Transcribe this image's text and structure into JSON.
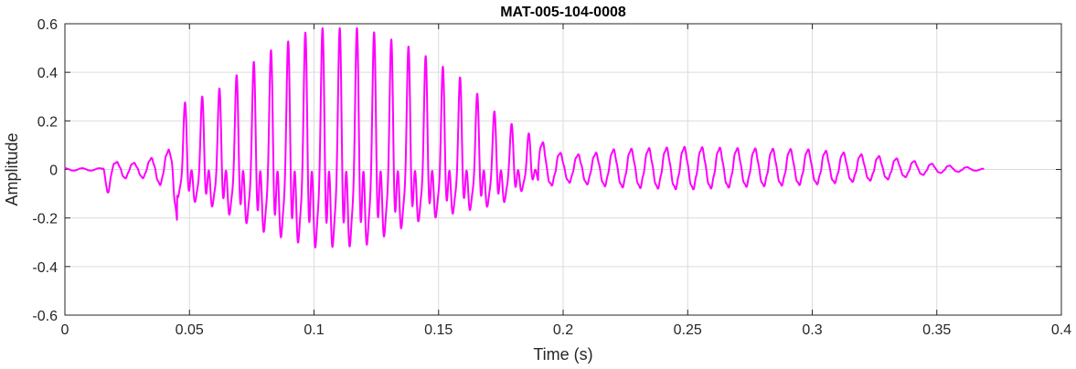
{
  "chart_data": {
    "type": "line",
    "title": "MAT-005-104-0008",
    "xlabel": "Time (s)",
    "ylabel": "Amplitude",
    "xlim": [
      0,
      0.4
    ],
    "ylim": [
      -0.6,
      0.6
    ],
    "xticks": [
      0,
      0.05,
      0.1,
      0.15,
      0.2,
      0.25,
      0.3,
      0.35,
      0.4
    ],
    "xtick_labels": [
      "0",
      "0.05",
      "0.1",
      "0.15",
      "0.2",
      "0.25",
      "0.3",
      "0.35",
      "0.4"
    ],
    "yticks": [
      -0.6,
      -0.4,
      -0.2,
      0,
      0.2,
      0.4,
      0.6
    ],
    "ytick_labels": [
      "-0.6",
      "-0.4",
      "-0.2",
      "0",
      "0.2",
      "0.4",
      "0.6"
    ],
    "grid": true,
    "legend": "none",
    "series": [
      {
        "color": "#ff00ff",
        "duration": 0.369,
        "envelope": {
          "t": [
            0,
            0.015,
            0.017,
            0.02,
            0.03,
            0.038,
            0.042,
            0.045,
            0.06,
            0.08,
            0.1,
            0.12,
            0.14,
            0.16,
            0.175,
            0.19,
            0.2,
            0.21,
            0.22,
            0.25,
            0.27,
            0.3,
            0.33,
            0.35,
            0.369
          ],
          "upper": [
            0.005,
            0.005,
            0.07,
            0.03,
            0.025,
            0.06,
            0.08,
            0.25,
            0.3,
            0.45,
            0.55,
            0.55,
            0.47,
            0.35,
            0.2,
            0.12,
            0.06,
            0.06,
            0.08,
            0.09,
            0.085,
            0.08,
            0.05,
            0.02,
            0.003
          ],
          "lower": [
            -0.005,
            -0.005,
            -0.1,
            -0.04,
            -0.03,
            -0.06,
            -0.1,
            -0.2,
            -0.27,
            -0.45,
            -0.56,
            -0.55,
            -0.38,
            -0.3,
            -0.25,
            -0.08,
            -0.05,
            -0.06,
            -0.07,
            -0.08,
            -0.07,
            -0.06,
            -0.04,
            -0.015,
            -0.003
          ]
        },
        "samples": [
          [
            0,
            0.0
          ],
          [
            0.005,
            0.003
          ],
          [
            0.01,
            -0.002
          ],
          [
            0.015,
            0.004
          ],
          [
            0.017,
            0.07
          ],
          [
            0.0172,
            -0.1
          ],
          [
            0.025,
            0.025
          ],
          [
            0.035,
            0.04
          ],
          [
            0.04,
            0.08
          ],
          [
            0.043,
            -0.1
          ],
          [
            0.045,
            0.25
          ],
          [
            0.05,
            0.3
          ],
          [
            0.06,
            -0.26
          ],
          [
            0.07,
            0.28
          ],
          [
            0.08,
            0.42
          ],
          [
            0.085,
            -0.45
          ],
          [
            0.09,
            0.5
          ],
          [
            0.095,
            -0.5
          ],
          [
            0.1,
            0.55
          ],
          [
            0.102,
            -0.56
          ],
          [
            0.11,
            0.53
          ],
          [
            0.115,
            -0.52
          ],
          [
            0.12,
            0.55
          ],
          [
            0.13,
            0.5
          ],
          [
            0.14,
            0.45
          ],
          [
            0.15,
            -0.35
          ],
          [
            0.16,
            0.35
          ],
          [
            0.17,
            -0.25
          ],
          [
            0.18,
            0.2
          ],
          [
            0.19,
            0.12
          ],
          [
            0.2,
            0.06
          ],
          [
            0.21,
            -0.05
          ],
          [
            0.22,
            0.07
          ],
          [
            0.25,
            0.09
          ],
          [
            0.27,
            0.085
          ],
          [
            0.3,
            0.08
          ],
          [
            0.32,
            -0.05
          ],
          [
            0.34,
            0.04
          ],
          [
            0.35,
            0.02
          ],
          [
            0.369,
            0.0
          ]
        ]
      }
    ]
  }
}
